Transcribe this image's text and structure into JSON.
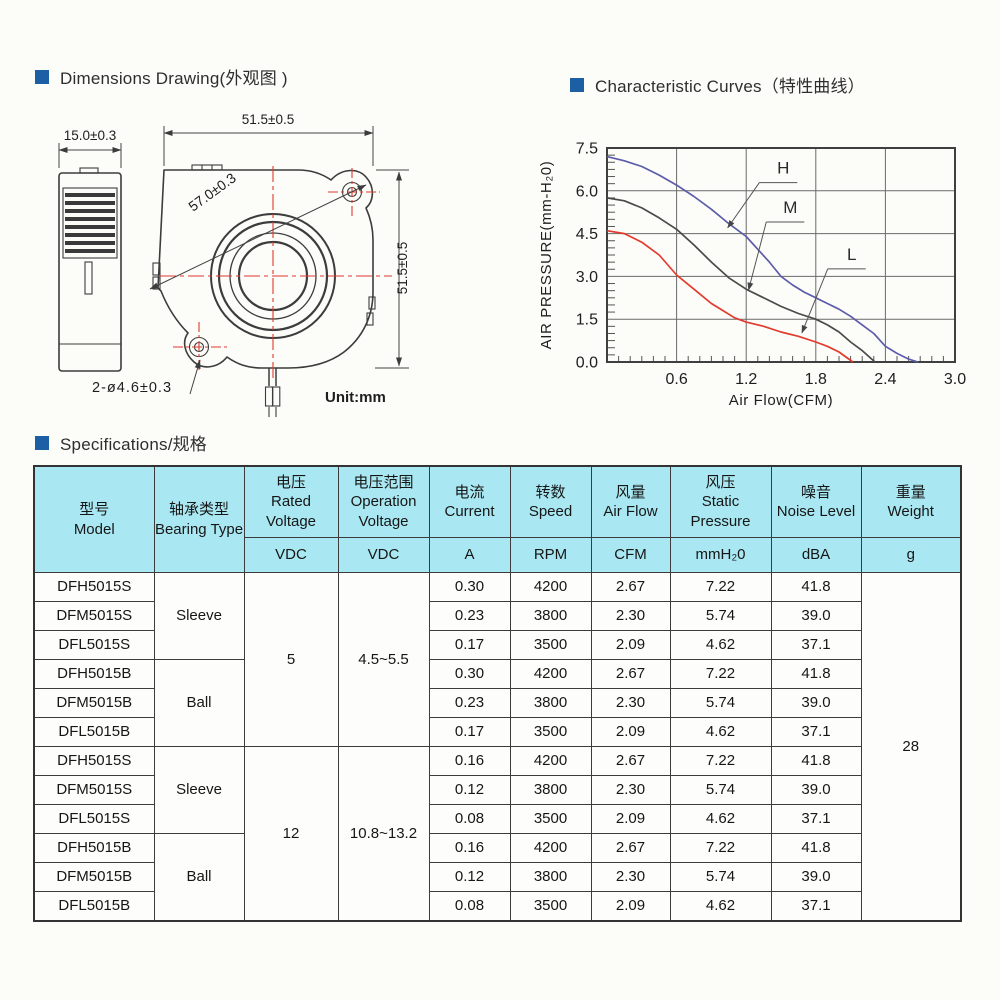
{
  "colors": {
    "accent_blue": "#1d5fa5",
    "table_header_bg": "#a9e8f2",
    "centerline_red": "#e0392e",
    "curve_h": "#5c5caa",
    "curve_m": "#4a4a48",
    "curve_l": "#e23b2e"
  },
  "sections": {
    "dimensions": {
      "title": "Dimensions Drawing(外观图 )"
    },
    "curves": {
      "title": "Characteristic Curves（特性曲线）"
    },
    "specs": {
      "title": "Specifications/规格"
    }
  },
  "drawing": {
    "dim_side_width": "15.0±0.3",
    "dim_top_width": "51.5±0.5",
    "dim_diagonal": "57.0±0.3",
    "dim_right_height": "51.5±0.5",
    "dim_holes": "2-ø4.6±0.3",
    "unit_note": "Unit:mm"
  },
  "chart_data": {
    "type": "line",
    "title": "Characteristic Curves（特性曲线）",
    "xlabel": "Air Flow(CFM)",
    "ylabel": "AIR PRESSURE(mm-H₂0)",
    "xlim": [
      0,
      3.0
    ],
    "ylim": [
      0,
      7.5
    ],
    "xticks": [
      0.6,
      1.2,
      1.8,
      2.4,
      3.0
    ],
    "yticks": [
      0.0,
      1.5,
      3.0,
      4.5,
      6.0,
      7.5
    ],
    "grid": true,
    "legend_position": "inline-labels",
    "series": [
      {
        "name": "H",
        "color": "#5c5caa",
        "x": [
          0,
          0.15,
          0.3,
          0.45,
          0.6,
          0.75,
          0.9,
          1.05,
          1.2,
          1.3,
          1.4,
          1.5,
          1.6,
          1.7,
          1.8,
          1.9,
          2.0,
          2.1,
          2.2,
          2.3,
          2.4,
          2.5,
          2.6,
          2.68
        ],
        "y": [
          7.2,
          7.05,
          6.85,
          6.55,
          6.2,
          5.8,
          5.35,
          4.85,
          4.4,
          3.95,
          3.5,
          3.0,
          2.7,
          2.45,
          2.25,
          2.05,
          1.85,
          1.6,
          1.3,
          1.0,
          0.55,
          0.3,
          0.1,
          0
        ]
      },
      {
        "name": "M",
        "color": "#4a4a48",
        "x": [
          0,
          0.15,
          0.3,
          0.45,
          0.6,
          0.75,
          0.9,
          1.05,
          1.2,
          1.35,
          1.5,
          1.65,
          1.8,
          1.9,
          2.0,
          2.1,
          2.2,
          2.31
        ],
        "y": [
          5.75,
          5.65,
          5.4,
          5.05,
          4.65,
          4.1,
          3.5,
          2.95,
          2.55,
          2.25,
          1.95,
          1.7,
          1.5,
          1.3,
          1.05,
          0.7,
          0.4,
          0
        ]
      },
      {
        "name": "L",
        "color": "#e23b2e",
        "x": [
          0,
          0.15,
          0.3,
          0.45,
          0.6,
          0.75,
          0.9,
          1.0,
          1.1,
          1.2,
          1.35,
          1.5,
          1.65,
          1.8,
          1.9,
          2.0,
          2.12
        ],
        "y": [
          4.6,
          4.5,
          4.2,
          3.75,
          3.05,
          2.55,
          2.05,
          1.8,
          1.55,
          1.4,
          1.25,
          1.05,
          0.9,
          0.7,
          0.55,
          0.35,
          0
        ]
      }
    ],
    "annotations": [
      {
        "text": "H",
        "label_at": [
          1.52,
          6.6
        ],
        "arrow_to": [
          1.04,
          4.7
        ]
      },
      {
        "text": "M",
        "label_at": [
          1.58,
          5.22
        ],
        "arrow_to": [
          1.22,
          2.52
        ]
      },
      {
        "text": "L",
        "label_at": [
          2.11,
          3.58
        ],
        "arrow_to": [
          1.68,
          1.02
        ]
      }
    ]
  },
  "table": {
    "header": {
      "model": {
        "zh": "型号",
        "en": "Model"
      },
      "bearing": {
        "zh": "轴承类型",
        "en": "Bearing Type"
      },
      "voltage": {
        "zh": "电压",
        "en": "Rated Voltage",
        "unit": "VDC"
      },
      "op_voltage": {
        "zh": "电压范围",
        "en": "Operation Voltage",
        "unit": "VDC"
      },
      "current": {
        "zh": "电流",
        "en": "Current",
        "unit": "A"
      },
      "speed": {
        "zh": "转数",
        "en": "Speed",
        "unit": "RPM"
      },
      "airflow": {
        "zh": "风量",
        "en": "Air Flow",
        "unit": "CFM"
      },
      "pressure": {
        "zh": "风压",
        "en": "Static Pressure",
        "unit": "mmH₂0"
      },
      "noise": {
        "zh": "噪音",
        "en": "Noise Level",
        "unit": "dBA"
      },
      "weight": {
        "zh": "重量",
        "en": "Weight",
        "unit": "g"
      }
    },
    "bearing_groups": [
      "Sleeve",
      "Ball",
      "Sleeve",
      "Ball"
    ],
    "voltage_groups": [
      {
        "rated": "5",
        "operation": "4.5~5.5"
      },
      {
        "rated": "12",
        "operation": "10.8~13.2"
      }
    ],
    "weight": "28",
    "rows": [
      {
        "model": "DFH5015S",
        "current": "0.30",
        "speed": "4200",
        "airflow": "2.67",
        "pressure": "7.22",
        "noise": "41.8"
      },
      {
        "model": "DFM5015S",
        "current": "0.23",
        "speed": "3800",
        "airflow": "2.30",
        "pressure": "5.74",
        "noise": "39.0"
      },
      {
        "model": "DFL5015S",
        "current": "0.17",
        "speed": "3500",
        "airflow": "2.09",
        "pressure": "4.62",
        "noise": "37.1"
      },
      {
        "model": "DFH5015B",
        "current": "0.30",
        "speed": "4200",
        "airflow": "2.67",
        "pressure": "7.22",
        "noise": "41.8"
      },
      {
        "model": "DFM5015B",
        "current": "0.23",
        "speed": "3800",
        "airflow": "2.30",
        "pressure": "5.74",
        "noise": "39.0"
      },
      {
        "model": "DFL5015B",
        "current": "0.17",
        "speed": "3500",
        "airflow": "2.09",
        "pressure": "4.62",
        "noise": "37.1"
      },
      {
        "model": "DFH5015S",
        "current": "0.16",
        "speed": "4200",
        "airflow": "2.67",
        "pressure": "7.22",
        "noise": "41.8"
      },
      {
        "model": "DFM5015S",
        "current": "0.12",
        "speed": "3800",
        "airflow": "2.30",
        "pressure": "5.74",
        "noise": "39.0"
      },
      {
        "model": "DFL5015S",
        "current": "0.08",
        "speed": "3500",
        "airflow": "2.09",
        "pressure": "4.62",
        "noise": "37.1"
      },
      {
        "model": "DFH5015B",
        "current": "0.16",
        "speed": "4200",
        "airflow": "2.67",
        "pressure": "7.22",
        "noise": "41.8"
      },
      {
        "model": "DFM5015B",
        "current": "0.12",
        "speed": "3800",
        "airflow": "2.30",
        "pressure": "5.74",
        "noise": "39.0"
      },
      {
        "model": "DFL5015B",
        "current": "0.08",
        "speed": "3500",
        "airflow": "2.09",
        "pressure": "4.62",
        "noise": "37.1"
      }
    ]
  }
}
